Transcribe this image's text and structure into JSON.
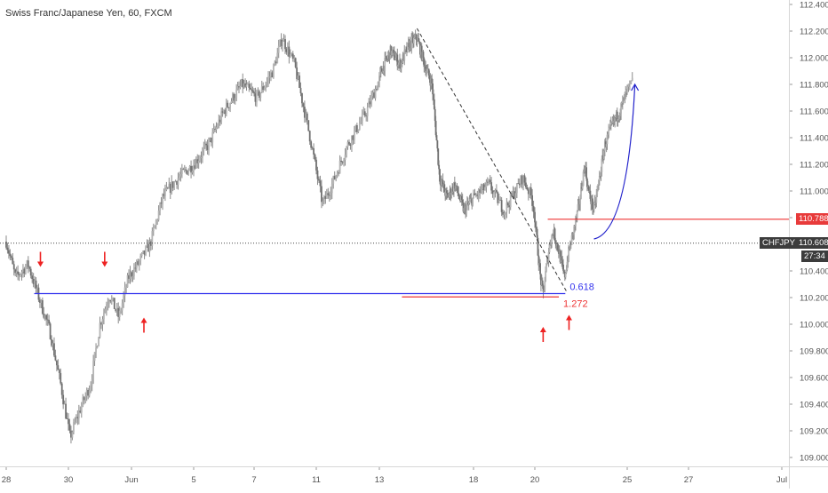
{
  "header": {
    "title": "Swiss Franc/Japanese Yen, 60, FXCM"
  },
  "chart_data": {
    "type": "candlestick",
    "title": "Swiss Franc/Japanese Yen, 60, FXCM",
    "symbol": "CHFJPY",
    "interval": "60",
    "source": "FXCM",
    "xlabel": "",
    "ylabel": "",
    "y_axis_side": "right",
    "ylim": [
      108.95,
      112.45
    ],
    "y_ticks": [
      "112.400",
      "112.200",
      "112.000",
      "111.800",
      "111.600",
      "111.400",
      "111.200",
      "111.000",
      "110.800",
      "110.600",
      "110.400",
      "110.200",
      "110.000",
      "109.800",
      "109.600",
      "109.400",
      "109.200",
      "109.000"
    ],
    "x_ticks": [
      "28",
      "30",
      "Jun",
      "5",
      "7",
      "11",
      "13",
      "18",
      "20",
      "25",
      "27",
      "Jul"
    ],
    "grid": false,
    "price_path": [
      {
        "t": 0,
        "p": 110.62
      },
      {
        "t": 0.3,
        "p": 110.35
      },
      {
        "t": 0.7,
        "p": 110.45
      },
      {
        "t": 1.05,
        "p": 110.2
      },
      {
        "t": 1.4,
        "p": 109.95
      },
      {
        "t": 1.75,
        "p": 109.55
      },
      {
        "t": 2.05,
        "p": 109.15
      },
      {
        "t": 2.35,
        "p": 109.35
      },
      {
        "t": 2.7,
        "p": 109.55
      },
      {
        "t": 3.0,
        "p": 110.0
      },
      {
        "t": 3.3,
        "p": 110.22
      },
      {
        "t": 3.6,
        "p": 110.05
      },
      {
        "t": 3.9,
        "p": 110.35
      },
      {
        "t": 4.2,
        "p": 110.45
      },
      {
        "t": 4.6,
        "p": 110.6
      },
      {
        "t": 5.0,
        "p": 110.95
      },
      {
        "t": 5.5,
        "p": 111.1
      },
      {
        "t": 6.0,
        "p": 111.2
      },
      {
        "t": 6.5,
        "p": 111.35
      },
      {
        "t": 7.0,
        "p": 111.6
      },
      {
        "t": 7.6,
        "p": 111.8
      },
      {
        "t": 8.1,
        "p": 111.7
      },
      {
        "t": 8.6,
        "p": 111.9
      },
      {
        "t": 8.9,
        "p": 112.15
      },
      {
        "t": 9.3,
        "p": 111.95
      },
      {
        "t": 9.8,
        "p": 111.4
      },
      {
        "t": 10.2,
        "p": 110.9
      },
      {
        "t": 10.5,
        "p": 111.05
      },
      {
        "t": 11.0,
        "p": 111.35
      },
      {
        "t": 11.6,
        "p": 111.6
      },
      {
        "t": 12.1,
        "p": 111.9
      },
      {
        "t": 12.6,
        "p": 112.05
      },
      {
        "t": 13.1,
        "p": 111.95
      },
      {
        "t": 13.6,
        "p": 112.1
      },
      {
        "t": 14.0,
        "p": 112.15
      },
      {
        "t": 14.4,
        "p": 111.95
      },
      {
        "t": 14.8,
        "p": 111.8
      },
      {
        "t": 15.2,
        "p": 111.1
      },
      {
        "t": 15.6,
        "p": 110.95
      },
      {
        "t": 16.0,
        "p": 111.05
      },
      {
        "t": 16.5,
        "p": 110.85
      },
      {
        "t": 17.0,
        "p": 110.95
      },
      {
        "t": 17.5,
        "p": 111.05
      },
      {
        "t": 18.0,
        "p": 110.85
      },
      {
        "t": 18.6,
        "p": 111.1
      },
      {
        "t": 18.9,
        "p": 110.95
      },
      {
        "t": 19.1,
        "p": 110.65
      },
      {
        "t": 19.3,
        "p": 110.35
      },
      {
        "t": 19.45,
        "p": 110.22
      },
      {
        "t": 19.6,
        "p": 110.4
      },
      {
        "t": 19.8,
        "p": 110.6
      },
      {
        "t": 20.0,
        "p": 110.7
      },
      {
        "t": 20.3,
        "p": 110.55
      },
      {
        "t": 20.6,
        "p": 110.35
      },
      {
        "t": 20.85,
        "p": 110.55
      },
      {
        "t": 21.1,
        "p": 110.7
      },
      {
        "t": 21.4,
        "p": 110.9
      },
      {
        "t": 21.7,
        "p": 111.2
      },
      {
        "t": 21.9,
        "p": 111.0
      },
      {
        "t": 22.2,
        "p": 110.85
      },
      {
        "t": 22.5,
        "p": 111.1
      },
      {
        "t": 22.8,
        "p": 111.35
      },
      {
        "t": 23.2,
        "p": 111.5
      },
      {
        "t": 23.6,
        "p": 111.6
      },
      {
        "t": 24.0,
        "p": 111.75
      },
      {
        "t": 24.2,
        "p": 111.83
      }
    ],
    "annotations": [
      {
        "id": "fib-0618",
        "kind": "hline",
        "price": 110.23,
        "t_start": 0.9,
        "t_end": 20.65,
        "color": "#3333ee",
        "label": "0.618",
        "label_color": "#3333ee"
      },
      {
        "id": "ext-1272",
        "kind": "hline",
        "price": 110.205,
        "t_start": 13.2,
        "t_end": 20.3,
        "color": "#ee3333",
        "label": "1.272",
        "label_color": "#ee3333"
      },
      {
        "id": "resistance",
        "kind": "hline",
        "price": 110.788,
        "t_start": 19.7,
        "t_end": 999,
        "color": "#ee3333",
        "label": "",
        "label_color": "#ee3333"
      },
      {
        "id": "trendline",
        "kind": "segment",
        "t1": 14.0,
        "p1": 112.22,
        "t2": 20.7,
        "p2": 110.25,
        "color": "#333333",
        "dashed": true
      }
    ],
    "arrows": [
      {
        "dir": "down",
        "t": 1.1,
        "p": 110.43
      },
      {
        "dir": "down",
        "t": 3.15,
        "p": 110.43
      },
      {
        "dir": "up",
        "t": 4.4,
        "p": 110.05
      },
      {
        "dir": "up",
        "t": 19.45,
        "p": 109.98
      },
      {
        "dir": "up",
        "t": 20.85,
        "p": 110.07
      }
    ],
    "projection": {
      "t1": 22.2,
      "p1": 110.64,
      "t2": 24.25,
      "p2": 111.8,
      "color": "#2222cc"
    },
    "current_price": {
      "value": 110.608,
      "label": "110.608",
      "symbol_label": "CHFJPY",
      "countdown": "27:34",
      "color": "#3c3c3c"
    },
    "resistance_label": {
      "value": 110.788,
      "label": "110.788",
      "color": "#e83a3a"
    }
  }
}
